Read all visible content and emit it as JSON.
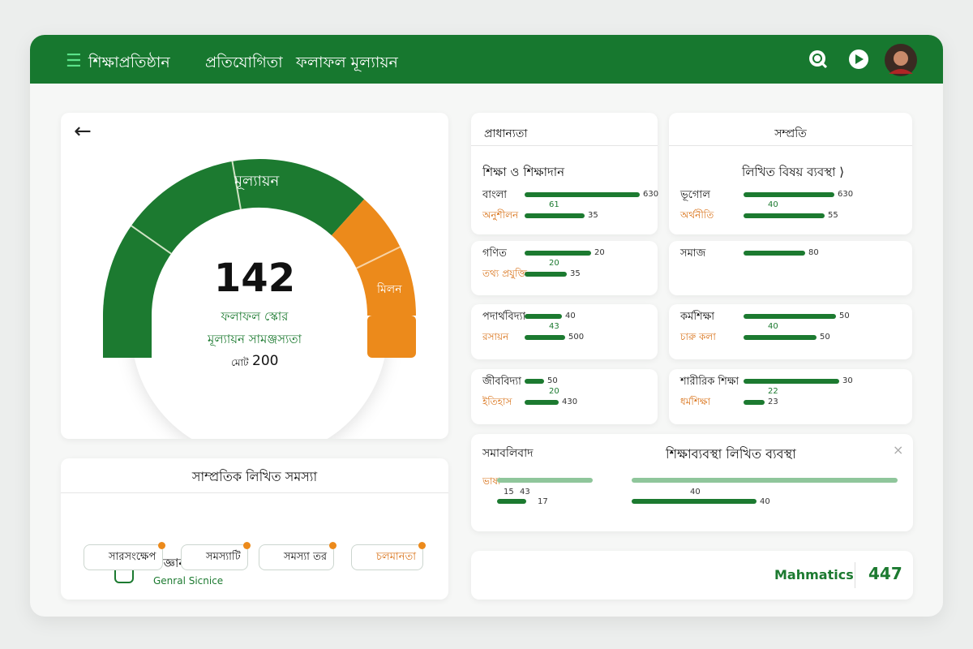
{
  "header": {
    "nav": [
      "শিক্ষাপ্রতিষ্ঠান",
      "প্রতিযোগিতা",
      "ফলাফল মূল্যায়ন"
    ]
  },
  "gauge": {
    "label": "মূল্যায়ন",
    "side_label": "মিলন",
    "score": 142,
    "caption1": "ফলাফল স্কোর",
    "caption2": "মূল্যায়ন সামঞ্জস্যতা",
    "total_label": "মোট",
    "total": 200
  },
  "summary": {
    "title": "সাম্প্রতিক লিখিত সমস্যা",
    "chips": [
      "সারসংক্ষেপ",
      "সমস্যাটি",
      "সমস্যা তর",
      "চলমানতা"
    ],
    "subject": {
      "name": "বিজ্ঞানবিষয়ক",
      "subtitle": "Genral Sicnice"
    }
  },
  "panels": [
    {
      "title": "প্রাধান্যতা",
      "subtitle": "শিক্ষা ও শিক্ষাদান",
      "rows": [
        {
          "label": "বাংলা",
          "value": 630
        },
        {
          "label": "অনুশীলন",
          "value": 35,
          "note": 61
        }
      ]
    },
    {
      "rows": [
        {
          "label": "গণিত",
          "value": 20
        },
        {
          "label": "তথ্য প্রযুক্তি",
          "value": 35,
          "note": 20
        }
      ]
    },
    {
      "rows": [
        {
          "label": "পদার্থবিদ্যা",
          "value": 40
        },
        {
          "label": "রসায়ন",
          "value": 500,
          "note": 43
        }
      ]
    },
    {
      "rows": [
        {
          "label": "জীববিদ্যা",
          "value": 50
        },
        {
          "label": "ইতিহাস",
          "value": 430,
          "note": 20
        }
      ]
    },
    {
      "title": "সম্প্রতি",
      "subtitle": "লিখিত বিষয় ব্যবস্থা ⟩",
      "rows": [
        {
          "label": "ভূগোল",
          "value": 630
        },
        {
          "label": "অর্থনীতি",
          "value": 55,
          "note": 40
        }
      ]
    },
    {
      "rows": [
        {
          "label": "সমাজ",
          "value": 80
        }
      ]
    },
    {
      "rows": [
        {
          "label": "কর্মশিক্ষা",
          "value": 50
        },
        {
          "label": "চারু কলা",
          "value": 50,
          "note": 40
        }
      ]
    },
    {
      "rows": [
        {
          "label": "শারীরিক শিক্ষা",
          "value": 30
        },
        {
          "label": "ধর্মশিক্ষা",
          "value": 23,
          "note": 22
        }
      ]
    }
  ],
  "wide": {
    "title_left": "সমাবলিবাদ",
    "title_center": "শিক্ষাব্যবস্থা লিখিত ব্যবস্থা",
    "label": "ভাষা",
    "left_notes": [
      15,
      43,
      17
    ],
    "right_note": 40,
    "right_value": 40
  },
  "footer": {
    "subject": "Mahmatics",
    "value": 447
  }
}
